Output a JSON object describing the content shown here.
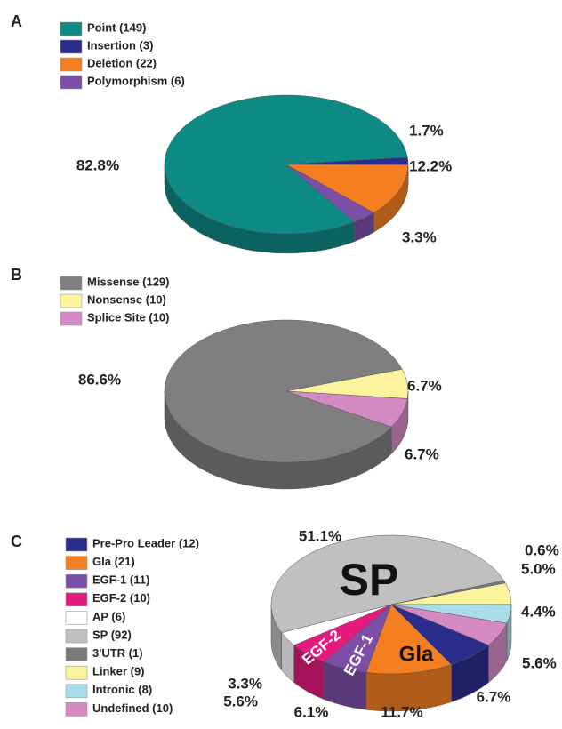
{
  "chart_data": [
    {
      "type": "pie",
      "panel": "A",
      "categories": [
        "Point (149)",
        "Insertion (3)",
        "Deletion (22)",
        "Polymorphism (6)"
      ],
      "values": [
        82.8,
        1.7,
        12.2,
        3.3
      ],
      "value_labels": [
        "82.8%",
        "1.7%",
        "12.2%",
        "3.3%"
      ],
      "colors": [
        "#0e8a85",
        "#2b2d8c",
        "#f57f20",
        "#7b4fa8"
      ]
    },
    {
      "type": "pie",
      "panel": "B",
      "categories": [
        "Missense (129)",
        "Nonsense (10)",
        "Splice Site (10)"
      ],
      "values": [
        86.6,
        6.7,
        6.7
      ],
      "value_labels": [
        "86.6%",
        "6.7%",
        "6.7%"
      ],
      "colors": [
        "#7f7f7f",
        "#fbf49c",
        "#d48bc4"
      ]
    },
    {
      "type": "pie",
      "panel": "C",
      "categories": [
        "Pre-Pro Leader (12)",
        "Gla (21)",
        "EGF-1 (11)",
        "EGF-2 (10)",
        "AP (6)",
        "SP (92)",
        "3'UTR (1)",
        "Linker (9)",
        "Intronic (8)",
        "Undefined (10)"
      ],
      "values": [
        6.7,
        11.7,
        6.1,
        5.6,
        3.3,
        51.1,
        0.6,
        5.0,
        4.4,
        5.6
      ],
      "value_labels": [
        "6.7%",
        "11.7%",
        "6.1%",
        "5.6%",
        "3.3%",
        "51.1%",
        "0.6%",
        "5.0%",
        "4.4%",
        "5.6%"
      ],
      "slice_labels": [
        null,
        "Gla",
        "EGF-1",
        "EGF-2",
        null,
        "SP",
        null,
        null,
        null,
        null
      ],
      "colors": [
        "#2b2d8c",
        "#f57f20",
        "#7b4fa8",
        "#e6197d",
        "#ffffff",
        "#c0c0c0",
        "#7a7a7a",
        "#fbf49c",
        "#a8dce6",
        "#d48bc4"
      ]
    }
  ]
}
